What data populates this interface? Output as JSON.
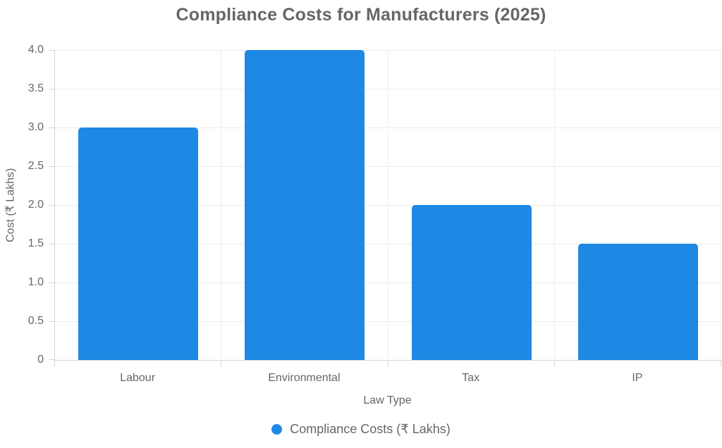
{
  "chart_data": {
    "type": "bar",
    "title": "Compliance Costs for Manufacturers (2025)",
    "categories": [
      "Labour",
      "Environmental",
      "Tax",
      "IP"
    ],
    "series": [
      {
        "name": "Compliance Costs (₹ Lakhs)",
        "values": [
          3,
          4,
          2,
          1.5
        ]
      }
    ],
    "xlabel": "Law Type",
    "ylabel": "Cost (₹ Lakhs)",
    "ylim": [
      0,
      4
    ],
    "yticks": [
      0,
      0.5,
      1,
      1.5,
      2,
      2.5,
      3,
      3.5,
      4
    ],
    "ytick_labels": [
      "0",
      "0.5",
      "1.0",
      "1.5",
      "2.0",
      "2.5",
      "3.0",
      "3.5",
      "4.0"
    ],
    "grid": true,
    "legend_position": "bottom"
  },
  "legend": {
    "label": "Compliance Costs (₹ Lakhs)"
  },
  "colors": {
    "bar": "#1E88E5",
    "grid_h": "#ececec",
    "grid_v": "#efefef",
    "axis": "#d4d4d4",
    "text": "#666666"
  }
}
